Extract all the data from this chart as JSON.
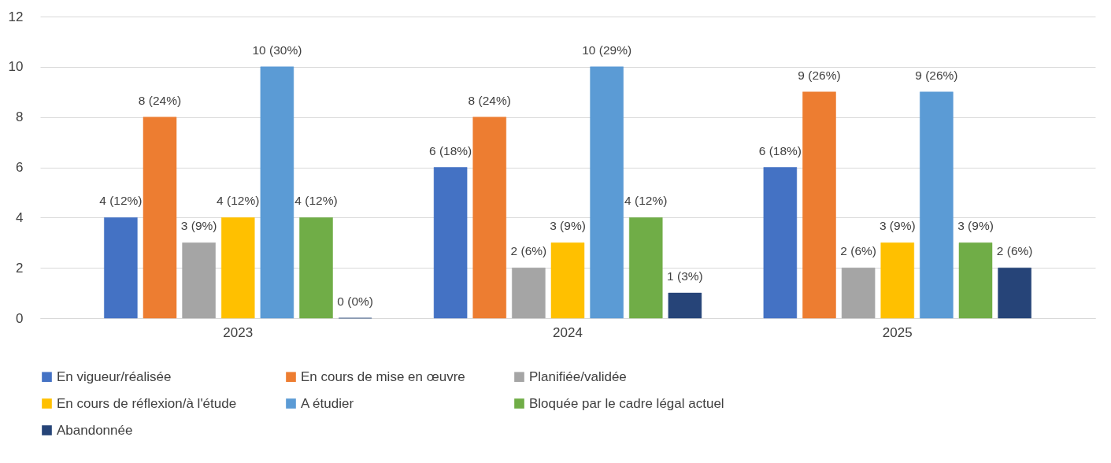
{
  "chart_data": {
    "type": "bar",
    "categories": [
      "2023",
      "2024",
      "2025"
    ],
    "ylim": [
      0,
      12
    ],
    "yticks": [
      0,
      2,
      4,
      6,
      8,
      10,
      12
    ],
    "grid": "y",
    "legend": "bottom",
    "series": [
      {
        "name": "En vigueur/réalisée",
        "color": "#4472c4",
        "values": [
          4,
          6,
          6
        ],
        "value_labels": [
          "4 (12%)",
          "6 (18%)",
          "6 (18%)"
        ]
      },
      {
        "name": "En cours de mise en œuvre",
        "color": "#ed7d31",
        "values": [
          8,
          8,
          9
        ],
        "value_labels": [
          "8 (24%)",
          "8 (24%)",
          "9 (26%)"
        ]
      },
      {
        "name": "Planifiée/validée",
        "color": "#a5a5a5",
        "values": [
          3,
          2,
          2
        ],
        "value_labels": [
          "3 (9%)",
          "2 (6%)",
          "2 (6%)"
        ]
      },
      {
        "name": "En cours de réflexion/à l'étude",
        "color": "#ffc000",
        "values": [
          4,
          3,
          3
        ],
        "value_labels": [
          "4 (12%)",
          "3 (9%)",
          "3 (9%)"
        ]
      },
      {
        "name": "A étudier",
        "color": "#5b9bd5",
        "values": [
          10,
          10,
          9
        ],
        "value_labels": [
          "10 (30%)",
          "10 (29%)",
          "9 (26%)"
        ]
      },
      {
        "name": "Bloquée par le cadre légal actuel",
        "color": "#70ad47",
        "values": [
          4,
          4,
          3
        ],
        "value_labels": [
          "4 (12%)",
          "4 (12%)",
          "3 (9%)"
        ]
      },
      {
        "name": "Abandonnée",
        "color": "#264478",
        "values": [
          0,
          1,
          2
        ],
        "value_labels": [
          "0 (0%)",
          "1 (3%)",
          "2 (6%)"
        ]
      }
    ]
  }
}
